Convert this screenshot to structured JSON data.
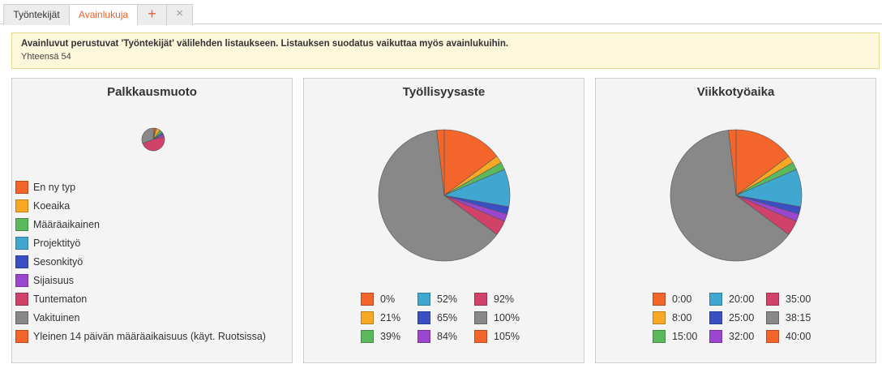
{
  "tabs": [
    {
      "label": "Työntekijät"
    },
    {
      "label": "Avainlukuja"
    },
    {
      "label": "+"
    },
    {
      "label": "×"
    }
  ],
  "info": {
    "message": "Avainluvut perustuvat 'Työntekijät' välilehden listaukseen. Listauksen suodatus vaikuttaa myös avainlukuihin.",
    "total": "Yhteensä 54"
  },
  "colors": {
    "orange": "#f4652b",
    "yellow": "#f9a824",
    "green": "#5cb85c",
    "cyan": "#3fa7d0",
    "blue": "#3b4fc4",
    "purple": "#9b46cf",
    "rose": "#d0426a",
    "gray": "#888888"
  },
  "chart_data": [
    {
      "type": "pie",
      "title": "Palkkausmuoto",
      "legend_position": "bottom-left",
      "slices": [
        {
          "label": "En ny typ",
          "value": 1,
          "color": "#f4652b"
        },
        {
          "label": "Koeaika",
          "value": 3,
          "color": "#f9a824"
        },
        {
          "label": "Määräaikainen",
          "value": 2,
          "color": "#5cb85c"
        },
        {
          "label": "Projektityö",
          "value": 1,
          "color": "#3fa7d0"
        },
        {
          "label": "Sesonkityö",
          "value": 1,
          "color": "#3b4fc4"
        },
        {
          "label": "Sijaisuus",
          "value": 2,
          "color": "#9b46cf"
        },
        {
          "label": "Tuntematon",
          "value": 26,
          "color": "#d0426a"
        },
        {
          "label": "Vakituinen",
          "value": 17,
          "color": "#888888"
        },
        {
          "label": "Yleinen 14 päivän määräaikaisuus (käyt. Ruotsissa)",
          "value": 1,
          "color": "#f4652b"
        }
      ]
    },
    {
      "type": "pie",
      "title": "Työllisyysaste",
      "legend_position": "bottom",
      "slices": [
        {
          "label": "0%",
          "value": 8,
          "color": "#f4652b"
        },
        {
          "label": "21%",
          "value": 1,
          "color": "#f9a824"
        },
        {
          "label": "39%",
          "value": 1,
          "color": "#5cb85c"
        },
        {
          "label": "52%",
          "value": 5,
          "color": "#3fa7d0"
        },
        {
          "label": "65%",
          "value": 1,
          "color": "#3b4fc4"
        },
        {
          "label": "84%",
          "value": 1,
          "color": "#9b46cf"
        },
        {
          "label": "92%",
          "value": 2,
          "color": "#d0426a"
        },
        {
          "label": "100%",
          "value": 34,
          "color": "#888888"
        },
        {
          "label": "105%",
          "value": 1,
          "color": "#f4652b"
        }
      ]
    },
    {
      "type": "pie",
      "title": "Viikkotyöaika",
      "legend_position": "bottom",
      "slices": [
        {
          "label": "0:00",
          "value": 8,
          "color": "#f4652b"
        },
        {
          "label": "8:00",
          "value": 1,
          "color": "#f9a824"
        },
        {
          "label": "15:00",
          "value": 1,
          "color": "#5cb85c"
        },
        {
          "label": "20:00",
          "value": 5,
          "color": "#3fa7d0"
        },
        {
          "label": "25:00",
          "value": 1,
          "color": "#3b4fc4"
        },
        {
          "label": "32:00",
          "value": 1,
          "color": "#9b46cf"
        },
        {
          "label": "35:00",
          "value": 2,
          "color": "#d0426a"
        },
        {
          "label": "38:15",
          "value": 34,
          "color": "#888888"
        },
        {
          "label": "40:00",
          "value": 1,
          "color": "#f4652b"
        }
      ]
    }
  ]
}
